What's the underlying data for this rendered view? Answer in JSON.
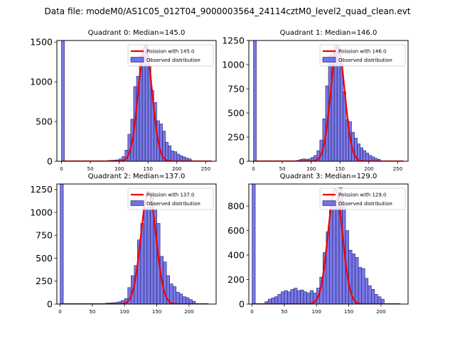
{
  "figure": {
    "suptitle": "Data file: modeM0/AS1C05_012T04_9000003564_24114cztM0_level2_quad_clean.evt"
  },
  "colors": {
    "hist_fill": "#7272e6",
    "hist_edge": "#1f1f66",
    "poisson_line": "#ee0000",
    "axis": "#000000"
  },
  "chart_data": [
    {
      "type": "bar",
      "title": "Quadrant 0: Median=145.0",
      "legend": [
        "Poission with 145.0",
        "Observed distribution"
      ],
      "legend_position": "top-right",
      "xlim": [
        -8,
        268
      ],
      "ylim": [
        0,
        1520
      ],
      "xticks": [
        0,
        50,
        100,
        150,
        200,
        250
      ],
      "yticks": [
        0,
        500,
        1000,
        1500
      ],
      "bin_width": 5,
      "bin_starts": [
        0,
        80,
        85,
        90,
        95,
        100,
        105,
        110,
        115,
        120,
        125,
        130,
        135,
        140,
        145,
        150,
        155,
        160,
        165,
        170,
        175,
        180,
        185,
        190,
        195,
        200,
        205,
        210,
        215,
        220
      ],
      "counts": [
        1520,
        10,
        12,
        14,
        18,
        30,
        60,
        140,
        340,
        530,
        940,
        1070,
        1330,
        1390,
        1460,
        1190,
        890,
        740,
        510,
        470,
        380,
        240,
        195,
        130,
        120,
        90,
        70,
        55,
        40,
        30
      ],
      "poisson_mean": 145.0,
      "poisson_peak": 1450,
      "curve_range": [
        0,
        260
      ]
    },
    {
      "type": "bar",
      "title": "Quadrant 1: Median=146.0",
      "legend": [
        "Poission with 146.0",
        "Observed distribution"
      ],
      "legend_position": "top-right",
      "xlim": [
        -8,
        268
      ],
      "ylim": [
        0,
        1250
      ],
      "xticks": [
        0,
        50,
        100,
        150,
        200,
        250
      ],
      "yticks": [
        0,
        250,
        500,
        750,
        1000,
        1250
      ],
      "bin_width": 5,
      "bin_starts": [
        0,
        75,
        80,
        85,
        90,
        95,
        100,
        105,
        110,
        115,
        120,
        125,
        130,
        135,
        140,
        145,
        150,
        155,
        160,
        165,
        170,
        175,
        180,
        185,
        190,
        195,
        200,
        205,
        210,
        215
      ],
      "counts": [
        1250,
        10,
        20,
        25,
        20,
        25,
        40,
        60,
        110,
        220,
        440,
        780,
        1100,
        1120,
        1200,
        1170,
        1020,
        720,
        430,
        410,
        300,
        240,
        180,
        140,
        110,
        85,
        60,
        45,
        30,
        20
      ],
      "poisson_mean": 146.0,
      "poisson_peak": 1200,
      "curve_range": [
        0,
        260
      ]
    },
    {
      "type": "bar",
      "title": "Quadrant 2: Median=137.0",
      "legend": [
        "Poission with 137.0",
        "Observed distribution"
      ],
      "legend_position": "top-right",
      "xlim": [
        -5,
        242
      ],
      "ylim": [
        0,
        1310
      ],
      "xticks": [
        0,
        50,
        100,
        150,
        200
      ],
      "yticks": [
        0,
        250,
        500,
        750,
        1000,
        1250
      ],
      "bin_width": 5,
      "bin_starts": [
        0,
        70,
        75,
        80,
        85,
        90,
        95,
        100,
        105,
        110,
        115,
        120,
        125,
        130,
        135,
        140,
        145,
        150,
        155,
        160,
        165,
        170,
        175,
        180,
        185,
        190,
        195,
        200,
        205
      ],
      "counts": [
        1310,
        10,
        12,
        15,
        18,
        25,
        40,
        60,
        180,
        310,
        420,
        700,
        880,
        1040,
        1060,
        1220,
        1030,
        880,
        520,
        460,
        310,
        220,
        190,
        130,
        110,
        80,
        70,
        50,
        30
      ],
      "poisson_mean": 137.0,
      "poisson_peak": 1230,
      "curve_range": [
        0,
        230
      ]
    },
    {
      "type": "bar",
      "title": "Quadrant 3: Median=129.0",
      "legend": [
        "Poission with 129.0",
        "Observed distribution"
      ],
      "legend_position": "top-right",
      "xlim": [
        -5,
        242
      ],
      "ylim": [
        0,
        980
      ],
      "xticks": [
        0,
        50,
        100,
        150,
        200
      ],
      "yticks": [
        0,
        200,
        400,
        600,
        800
      ],
      "bin_width": 5,
      "bin_starts": [
        0,
        20,
        25,
        30,
        35,
        40,
        45,
        50,
        55,
        60,
        65,
        70,
        75,
        80,
        85,
        90,
        95,
        100,
        105,
        110,
        115,
        120,
        125,
        130,
        135,
        140,
        145,
        150,
        155,
        160,
        165,
        170,
        175,
        180,
        185,
        190,
        195,
        200
      ],
      "counts": [
        980,
        20,
        40,
        50,
        60,
        80,
        100,
        110,
        100,
        120,
        130,
        110,
        115,
        100,
        90,
        110,
        90,
        130,
        220,
        420,
        590,
        770,
        830,
        860,
        950,
        800,
        600,
        440,
        410,
        380,
        300,
        290,
        210,
        150,
        120,
        80,
        60,
        40
      ],
      "poisson_mean": 129.0,
      "poisson_peak": 940,
      "curve_range": [
        0,
        230
      ]
    }
  ]
}
